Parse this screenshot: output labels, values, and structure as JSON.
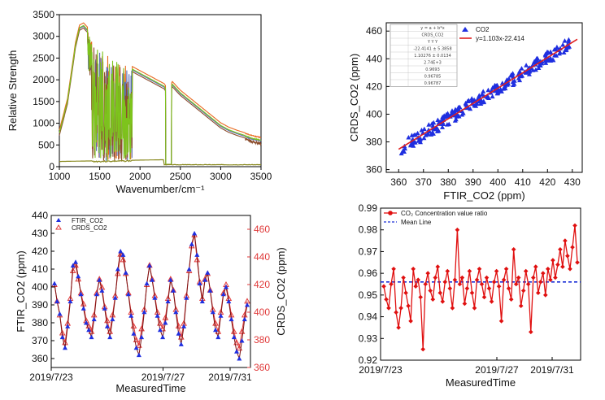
{
  "chart_data": [
    {
      "id": "spectra",
      "type": "line",
      "xlabel": "Wavenumber/cm⁻¹",
      "ylabel": "Relative Strength",
      "xlim": [
        1000,
        3500
      ],
      "ylim": [
        0,
        3500
      ],
      "xticks": [
        1000,
        1500,
        2000,
        2500,
        3000,
        3500
      ],
      "yticks": [
        0,
        500,
        1000,
        1500,
        2000,
        2500,
        3000,
        3500
      ],
      "envelope": [
        [
          1000,
          780
        ],
        [
          1100,
          1500
        ],
        [
          1200,
          2800
        ],
        [
          1250,
          3200
        ],
        [
          1300,
          3250
        ],
        [
          1350,
          3150
        ],
        [
          1400,
          2900
        ],
        [
          1500,
          2700
        ],
        [
          1600,
          2600
        ],
        [
          1700,
          2450
        ],
        [
          1800,
          2300
        ],
        [
          1900,
          2250
        ],
        [
          2000,
          2150
        ],
        [
          2100,
          2050
        ],
        [
          2200,
          1950
        ],
        [
          2300,
          1850
        ],
        [
          2350,
          1700
        ],
        [
          2400,
          1900
        ],
        [
          2500,
          1700
        ],
        [
          2600,
          1550
        ],
        [
          2700,
          1400
        ],
        [
          2800,
          1250
        ],
        [
          2900,
          1100
        ],
        [
          3000,
          950
        ],
        [
          3100,
          850
        ],
        [
          3200,
          780
        ],
        [
          3300,
          720
        ],
        [
          3400,
          660
        ],
        [
          3500,
          620
        ]
      ],
      "colors": [
        "#e8691f",
        "#5b6db8",
        "#8c4e2e",
        "#7dc41c"
      ]
    },
    {
      "id": "regression",
      "type": "scatter",
      "xlabel": "FTIR_CO2 (ppm)",
      "ylabel": "CRDS_CO2 (ppm)",
      "xlim": [
        355,
        434
      ],
      "ylim": [
        358,
        466
      ],
      "xticks": [
        360,
        370,
        380,
        390,
        400,
        410,
        420,
        430
      ],
      "yticks": [
        360,
        380,
        400,
        420,
        440,
        460
      ],
      "series": [
        {
          "name": "CO2",
          "color": "#1f2fe0"
        },
        {
          "name": "y=1.103x-22.414",
          "color": "#e01f1f",
          "slope": 1.103,
          "intercept": -22.414,
          "x_range": [
            360,
            432
          ]
        }
      ],
      "fit_table": [
        "y = a + b*x",
        "CRDS_CO2",
        "Y Y Y",
        "-22.4141 ± 5.3858",
        "1.10276 ± 0.0134",
        "2.74E+3",
        "0.9693",
        "0.96785",
        "0.96787"
      ]
    },
    {
      "id": "timeseries",
      "type": "line",
      "xlabel": "MeasuredTime",
      "ylabel": "FTIR_CO2 (ppm)",
      "y2label": "CRDS_CO2 (ppm)",
      "xticks": [
        "2019/7/23",
        "2019/7/27",
        "2019/7/31"
      ],
      "ylim": [
        355,
        440
      ],
      "y2lim": [
        360,
        470
      ],
      "yticks": [
        360,
        370,
        380,
        390,
        400,
        410,
        420,
        430,
        440
      ],
      "y2ticks": [
        360,
        380,
        400,
        420,
        440,
        460
      ],
      "series": [
        {
          "name": "FTIR_CO2",
          "color": "#1f2fe0",
          "values": [
            402,
            392,
            385,
            372,
            366,
            378,
            392,
            412,
            414,
            406,
            396,
            388,
            380,
            376,
            372,
            382,
            396,
            404,
            398,
            388,
            378,
            372,
            382,
            394,
            410,
            420,
            418,
            408,
            396,
            384,
            374,
            366,
            362,
            372,
            386,
            402,
            412,
            404,
            394,
            384,
            376,
            372,
            380,
            392,
            404,
            398,
            386,
            374,
            368,
            378,
            394,
            410,
            424,
            430,
            418,
            402,
            392,
            404,
            408,
            398,
            386,
            376,
            372,
            384,
            396,
            400,
            392,
            382,
            372,
            364,
            360,
            370,
            382,
            390
          ]
        },
        {
          "name": "CRDS_CO2",
          "color": "#e03a3a",
          "values": [
            420,
            408,
            398,
            385,
            378,
            392,
            410,
            430,
            434,
            424,
            414,
            406,
            394,
            390,
            386,
            398,
            414,
            424,
            418,
            404,
            394,
            386,
            398,
            412,
            428,
            442,
            438,
            428,
            414,
            400,
            390,
            380,
            376,
            388,
            402,
            420,
            434,
            424,
            412,
            400,
            392,
            388,
            396,
            410,
            424,
            416,
            402,
            390,
            382,
            392,
            412,
            430,
            448,
            456,
            438,
            422,
            410,
            424,
            428,
            416,
            402,
            392,
            386,
            400,
            414,
            420,
            410,
            398,
            386,
            378,
            374,
            386,
            398,
            408
          ]
        }
      ]
    },
    {
      "id": "ratio",
      "type": "line",
      "xlabel": "MeasuredTime",
      "ylim": [
        0.92,
        0.99
      ],
      "yticks": [
        0.92,
        0.93,
        0.94,
        0.95,
        0.96,
        0.97,
        0.98,
        0.99
      ],
      "xticks": [
        "2019/7/23",
        "2019/7/27",
        "2019/7/31"
      ],
      "mean": 0.956,
      "series": [
        {
          "name": "CO₂ Concentration value ratio",
          "color": "#e01010",
          "values": [
            0.954,
            0.948,
            0.944,
            0.955,
            0.962,
            0.942,
            0.935,
            0.944,
            0.958,
            0.951,
            0.945,
            0.938,
            0.962,
            0.954,
            0.957,
            0.949,
            0.925,
            0.955,
            0.96,
            0.952,
            0.948,
            0.958,
            0.963,
            0.951,
            0.947,
            0.956,
            0.961,
            0.953,
            0.944,
            0.957,
            0.98,
            0.955,
            0.958,
            0.946,
            0.953,
            0.961,
            0.951,
            0.944,
            0.957,
            0.962,
            0.955,
            0.949,
            0.958,
            0.953,
            0.947,
            0.956,
            0.961,
            0.954,
            0.938,
            0.957,
            0.962,
            0.953,
            0.948,
            0.971,
            0.955,
            0.958,
            0.945,
            0.952,
            0.961,
            0.955,
            0.933,
            0.958,
            0.963,
            0.951,
            0.956,
            0.96,
            0.95,
            0.962,
            0.957,
            0.966,
            0.958,
            0.964,
            0.971,
            0.963,
            0.975,
            0.968,
            0.962,
            0.972,
            0.982,
            0.965
          ]
        },
        {
          "name": "Mean Line",
          "color": "#1a2fd6"
        }
      ]
    }
  ]
}
